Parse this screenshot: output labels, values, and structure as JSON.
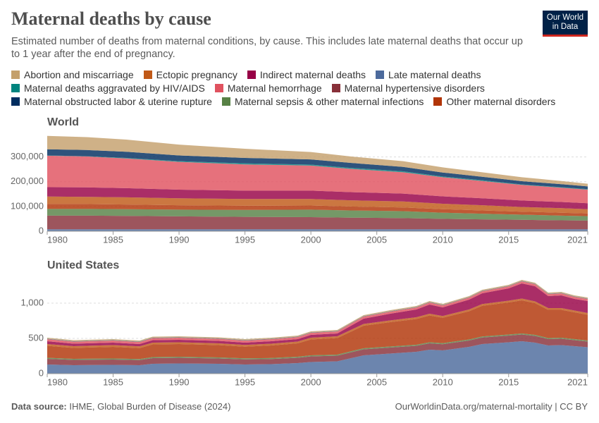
{
  "header": {
    "title": "Maternal deaths by cause",
    "subtitle": "Estimated number of deaths from maternal conditions, by cause. This includes late maternal deaths that occur up to 1 year after the end of pregnancy.",
    "logo": [
      "Our World",
      "in Data"
    ]
  },
  "chart_data": [
    {
      "type": "stacked-area",
      "title": "World",
      "grid": true,
      "x": [
        1980,
        1983,
        1986,
        1990,
        1995,
        2000,
        2003,
        2007,
        2010,
        2013,
        2016,
        2019,
        2021
      ],
      "xlim": [
        1980,
        2021
      ],
      "xticks": [
        1980,
        1985,
        1990,
        1995,
        2000,
        2005,
        2010,
        2015,
        2021
      ],
      "ylim": [
        0,
        390000
      ],
      "yticks": [
        0,
        {
          "value": 100000,
          "label": "100,000"
        },
        {
          "value": 200000,
          "label": "200,000"
        },
        {
          "value": 300000,
          "label": "300,000"
        }
      ],
      "series": [
        {
          "name": "Abortion and miscarriage",
          "color": "#c4a06c",
          "values": [
            54000,
            52000,
            49000,
            44000,
            37000,
            30000,
            26000,
            23000,
            21000,
            18000,
            16000,
            13000,
            11000
          ]
        },
        {
          "name": "Ectopic pregnancy",
          "color": "#c05917",
          "values": [
            30000,
            29000,
            29000,
            28000,
            27000,
            26000,
            25000,
            24000,
            22000,
            21000,
            19000,
            18000,
            17000
          ]
        },
        {
          "name": "Indirect maternal deaths",
          "color": "#970046",
          "values": [
            38000,
            38000,
            37000,
            35000,
            34000,
            34000,
            33000,
            32000,
            30000,
            28000,
            26000,
            25000,
            24000
          ]
        },
        {
          "name": "Late maternal deaths",
          "color": "#4c6a9c",
          "values": [
            8000,
            8000,
            8000,
            8000,
            8000,
            8000,
            8000,
            8000,
            8000,
            8000,
            8000,
            8000,
            8000
          ]
        },
        {
          "name": "Maternal deaths aggravated by HIV/AIDS",
          "color": "#00847e",
          "values": [
            1000,
            1000,
            2000,
            3000,
            4000,
            4000,
            4000,
            4000,
            3000,
            3000,
            2000,
            2000,
            2000
          ]
        },
        {
          "name": "Maternal hemorrhage",
          "color": "#e0525f",
          "values": [
            127000,
            125000,
            120000,
            112000,
            106000,
            101000,
            94000,
            86000,
            77000,
            70000,
            63000,
            58000,
            55000
          ]
        },
        {
          "name": "Maternal hypertensive disorders",
          "color": "#883039",
          "values": [
            55000,
            55000,
            54000,
            52000,
            50000,
            49000,
            47000,
            45000,
            42000,
            40000,
            38000,
            36000,
            35000
          ]
        },
        {
          "name": "Maternal obstructed labor & uterine rupture",
          "color": "#002d5f",
          "values": [
            25000,
            25000,
            25000,
            23000,
            22000,
            21000,
            20000,
            18000,
            16000,
            14000,
            13000,
            12000,
            11000
          ]
        },
        {
          "name": "Maternal sepsis & other maternal infections",
          "color": "#578145",
          "values": [
            27000,
            27000,
            27000,
            27000,
            28000,
            30000,
            29000,
            28000,
            25000,
            23000,
            21000,
            19000,
            18000
          ]
        },
        {
          "name": "Other maternal disorders",
          "color": "#b13507",
          "values": [
            20000,
            20000,
            19000,
            18000,
            17000,
            17000,
            16000,
            15000,
            14000,
            13000,
            12000,
            12000,
            11000
          ]
        }
      ]
    },
    {
      "type": "stacked-area",
      "title": "United States",
      "grid": true,
      "x": [
        1980,
        1982,
        1985,
        1987,
        1988,
        1990,
        1993,
        1995,
        1997,
        1999,
        2000,
        2002,
        2004,
        2006,
        2008,
        2009,
        2010,
        2012,
        2013,
        2015,
        2016,
        2017,
        2018,
        2019,
        2020,
        2021
      ],
      "xlim": [
        1980,
        2021
      ],
      "xticks": [
        1980,
        1985,
        1990,
        1995,
        2000,
        2005,
        2010,
        2015,
        2021
      ],
      "ylim": [
        0,
        1350
      ],
      "yticks": [
        0,
        500,
        {
          "value": 1000,
          "label": "1,000"
        }
      ],
      "series": [
        {
          "name": "Abortion and miscarriage",
          "color": "#c4a06c",
          "values": [
            15,
            15,
            15,
            15,
            15,
            15,
            15,
            15,
            15,
            15,
            15,
            15,
            15,
            15,
            15,
            15,
            15,
            15,
            15,
            15,
            15,
            15,
            15,
            15,
            15,
            15
          ]
        },
        {
          "name": "Ectopic pregnancy",
          "color": "#c05917",
          "values": [
            25,
            25,
            25,
            25,
            25,
            25,
            25,
            25,
            25,
            25,
            25,
            25,
            25,
            25,
            25,
            25,
            25,
            25,
            25,
            25,
            25,
            25,
            25,
            25,
            25,
            25
          ]
        },
        {
          "name": "Indirect maternal deaths",
          "color": "#970046",
          "values": [
            40,
            35,
            35,
            33,
            35,
            35,
            35,
            33,
            35,
            35,
            40,
            40,
            75,
            95,
            110,
            130,
            122,
            140,
            153,
            175,
            215,
            215,
            170,
            180,
            165,
            170
          ]
        },
        {
          "name": "Late maternal deaths",
          "color": "#4c6a9c",
          "values": [
            130,
            120,
            125,
            120,
            140,
            145,
            140,
            130,
            135,
            150,
            165,
            175,
            260,
            285,
            310,
            340,
            330,
            380,
            420,
            445,
            460,
            440,
            400,
            405,
            390,
            375
          ]
        },
        {
          "name": "Maternal deaths aggravated by HIV/AIDS",
          "color": "#00847e",
          "values": [
            2,
            2,
            2,
            2,
            2,
            2,
            2,
            2,
            2,
            2,
            2,
            2,
            2,
            2,
            2,
            2,
            2,
            2,
            2,
            2,
            2,
            2,
            2,
            2,
            2,
            2
          ]
        },
        {
          "name": "Maternal hemorrhage",
          "color": "#e0525f",
          "values": [
            30,
            30,
            30,
            30,
            30,
            30,
            30,
            30,
            30,
            30,
            30,
            30,
            30,
            30,
            30,
            30,
            30,
            30,
            30,
            30,
            30,
            30,
            30,
            30,
            30,
            30
          ]
        },
        {
          "name": "Maternal hypertensive disorders",
          "color": "#883039",
          "values": [
            80,
            75,
            75,
            72,
            80,
            80,
            75,
            72,
            72,
            75,
            80,
            80,
            85,
            85,
            85,
            90,
            88,
            90,
            92,
            95,
            95,
            95,
            90,
            90,
            85,
            80
          ]
        },
        {
          "name": "Maternal obstructed labor & uterine rupture",
          "color": "#002d5f",
          "values": [
            3,
            3,
            3,
            3,
            3,
            3,
            3,
            3,
            3,
            3,
            3,
            3,
            3,
            3,
            3,
            3,
            3,
            3,
            3,
            3,
            3,
            3,
            3,
            3,
            3,
            3
          ]
        },
        {
          "name": "Maternal sepsis & other maternal infections",
          "color": "#578145",
          "values": [
            15,
            15,
            15,
            15,
            15,
            15,
            15,
            15,
            15,
            15,
            15,
            15,
            15,
            15,
            15,
            15,
            15,
            15,
            15,
            15,
            15,
            15,
            15,
            15,
            15,
            15
          ]
        },
        {
          "name": "Other maternal disorders",
          "color": "#b13507",
          "values": [
            170,
            155,
            165,
            155,
            180,
            180,
            175,
            165,
            178,
            190,
            225,
            235,
            320,
            345,
            365,
            380,
            360,
            400,
            435,
            455,
            470,
            450,
            400,
            395,
            380,
            365
          ]
        }
      ]
    }
  ],
  "footer": {
    "source_label": "Data source:",
    "source": "IHME, Global Burden of Disease (2024)",
    "url": "OurWorldinData.org/maternal-mortality | CC BY"
  }
}
